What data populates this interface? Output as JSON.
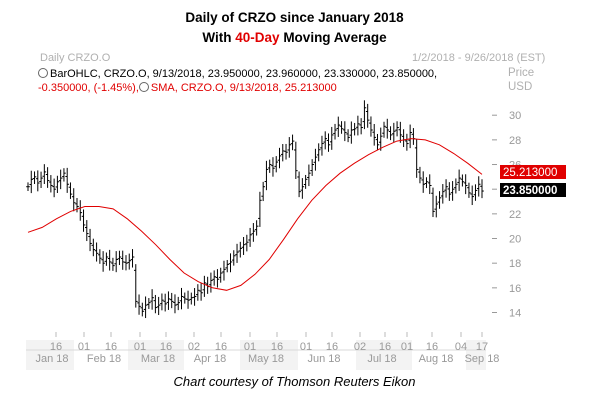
{
  "header": {
    "title_line1": "Daily of CRZO since January 2018",
    "title_line2_pre": "With ",
    "title_line2_highlight": "40-Day",
    "title_line2_post": " Moving Average",
    "symbol_label": "Daily CRZO.O",
    "date_range": "1/2/2018 - 9/26/2018 (EST)",
    "axis_name_1": "Price",
    "axis_name_2": "USD",
    "highlight_color": "#e00000"
  },
  "legend": {
    "ohlc_line": "BarOHLC, CRZO.O, 9/13/2018, 23.950000, 23.960000, 23.330000, 23.850000,",
    "sma_prefix": "-0.350000, (-1.45%),",
    "sma_line": "SMA, CRZO.O, 9/13/2018, 25.213000"
  },
  "credit": "Chart courtesy of Thomson Reuters Eikon",
  "chart_data": {
    "type": "line",
    "title": "Daily of CRZO since January 2018",
    "subtitle": "With 40-Day Moving Average",
    "ylim": [
      12.5,
      31.8
    ],
    "y_ticks": [
      14,
      16,
      18,
      20,
      22,
      24,
      26,
      28,
      30
    ],
    "grid": false,
    "x_tick_labels": [
      "16",
      "01",
      "16",
      "01",
      "16",
      "02",
      "16",
      "01",
      "16",
      "01",
      "16",
      "02",
      "16",
      "01",
      "16",
      "04",
      "17"
    ],
    "x_month_labels": [
      "Jan 18",
      "Feb 18",
      "Mar 18",
      "Apr 18",
      "May 18",
      "Jun 18",
      "Jul 18",
      "Aug 18",
      "Sep 18"
    ],
    "series": [
      {
        "name": "BarOHLC",
        "color": "#000000",
        "close_approx": [
          24.2,
          24.8,
          25.0,
          24.5,
          24.9,
          25.4,
          24.7,
          24.3,
          24.0,
          24.6,
          24.9,
          25.3,
          24.4,
          23.6,
          22.9,
          22.6,
          22.1,
          21.1,
          20.4,
          19.6,
          19.1,
          18.8,
          18.4,
          18.0,
          18.5,
          18.1,
          17.8,
          18.3,
          18.5,
          18.1,
          18.0,
          18.2,
          18.5,
          14.9,
          14.5,
          14.1,
          14.6,
          14.8,
          15.2,
          14.4,
          14.6,
          15.0,
          14.7,
          15.1,
          14.9,
          14.6,
          14.8,
          15.3,
          15.1,
          15.0,
          15.2,
          15.3,
          15.8,
          15.6,
          16.4,
          16.1,
          16.6,
          16.9,
          16.7,
          17.2,
          17.5,
          17.9,
          18.1,
          18.6,
          18.9,
          19.2,
          19.5,
          19.7,
          20.3,
          20.6,
          21.0,
          23.1,
          24.2,
          25.6,
          26.0,
          25.7,
          26.2,
          26.7,
          27.1,
          27.0,
          27.6,
          27.9,
          25.5,
          23.8,
          24.2,
          24.8,
          25.3,
          26.0,
          26.6,
          27.2,
          27.7,
          28.1,
          27.6,
          28.4,
          28.8,
          29.2,
          28.9,
          28.6,
          28.2,
          28.8,
          28.9,
          29.3,
          29.0,
          30.6,
          29.6,
          28.8,
          28.2,
          27.6,
          28.3,
          29.1,
          28.8,
          28.4,
          28.7,
          29.0,
          28.4,
          28.0,
          27.7,
          28.6,
          28.1,
          25.6,
          24.9,
          24.4,
          24.6,
          24.3,
          22.2,
          22.8,
          23.3,
          23.8,
          24.2,
          23.6,
          24.0,
          24.4,
          24.9,
          24.6,
          24.3,
          23.7,
          23.4,
          23.9,
          24.4,
          23.85
        ]
      },
      {
        "name": "SMA",
        "color": "#e00000",
        "values_sampled": [
          20.5,
          20.9,
          21.6,
          22.2,
          22.6,
          22.6,
          22.4,
          21.6,
          20.6,
          19.5,
          18.3,
          17.2,
          16.5,
          16.0,
          15.8,
          16.2,
          17.1,
          18.3,
          19.9,
          21.6,
          23.1,
          24.3,
          25.3,
          26.1,
          26.8,
          27.4,
          27.9,
          28.1,
          28.0,
          27.6,
          26.9,
          26.1,
          25.2
        ]
      }
    ],
    "last_values": {
      "sma": "25.213000",
      "close": "23.850000"
    }
  }
}
